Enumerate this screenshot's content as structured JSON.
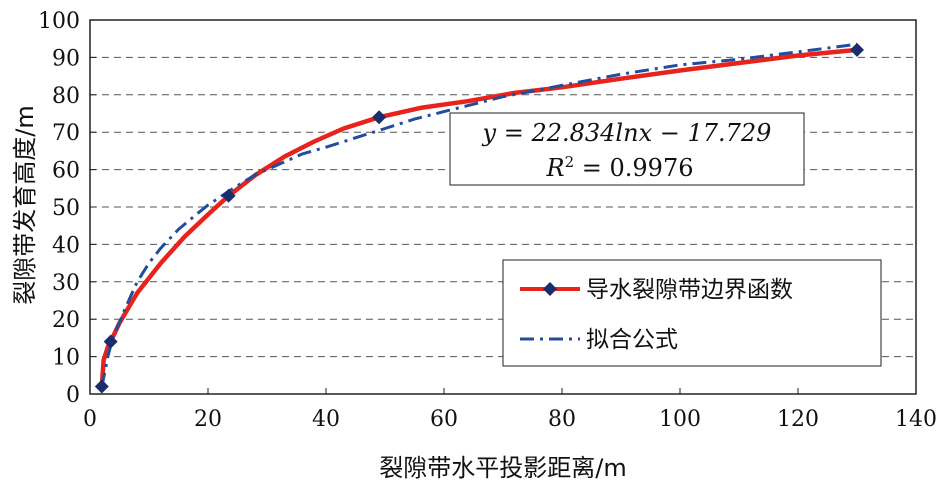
{
  "chart_data": {
    "type": "line",
    "xlabel": "裂隙带水平投影距离/m",
    "ylabel": "裂隙带发育高度/m",
    "xlim": [
      0,
      140
    ],
    "ylim": [
      0,
      100
    ],
    "x_ticks": [
      "0",
      "20",
      "40",
      "60",
      "80",
      "100",
      "120",
      "140"
    ],
    "y_ticks": [
      "0",
      "10",
      "20",
      "30",
      "40",
      "50",
      "60",
      "70",
      "80",
      "90",
      "100"
    ],
    "grid": "horizontal-dashed",
    "legend_position": "bottom-right",
    "series": [
      {
        "name": "导水裂隙带边界函数",
        "color": "#e8231c",
        "style": "solid",
        "markers": [
          [
            2,
            2
          ],
          [
            3.5,
            14
          ],
          [
            23.5,
            53
          ],
          [
            49,
            74
          ],
          [
            130,
            92
          ]
        ],
        "x": [
          2,
          2.3,
          3,
          3.5,
          5,
          8,
          12,
          16,
          20,
          23.5,
          28,
          33,
          38,
          43,
          49,
          56,
          64,
          72,
          80,
          90,
          100,
          110,
          120,
          130
        ],
        "y": [
          2,
          9,
          12.5,
          14,
          19,
          27,
          35,
          42,
          48,
          53,
          58.5,
          63.5,
          67.5,
          71,
          74,
          76.5,
          78.3,
          80.5,
          82,
          84.3,
          86.5,
          88.5,
          90.5,
          92
        ]
      },
      {
        "name": "拟合公式",
        "color": "#1f4e9e",
        "style": "dash-dot",
        "x": [
          2,
          2.5,
          3,
          4,
          5,
          6,
          8,
          10,
          12,
          15,
          18,
          20,
          24,
          28,
          32,
          36,
          40,
          45,
          50,
          55,
          60,
          70,
          80,
          90,
          100,
          110,
          120,
          130
        ],
        "y": [
          2,
          5.8,
          9.8,
          16,
          19,
          23,
          30,
          35,
          39,
          44,
          48,
          50.5,
          54.7,
          58.6,
          61.4,
          64.2,
          66,
          68.5,
          71,
          73.5,
          75.5,
          79.5,
          82.5,
          85.5,
          88,
          89.5,
          91.5,
          93.5
        ]
      }
    ],
    "annotation": {
      "equation": "y = 22.834lnx − 17.729",
      "r2_label": "R",
      "r2_value": " = 0.9976"
    }
  },
  "legend": {
    "item1": "导水裂隙带边界函数",
    "item2": "拟合公式"
  }
}
